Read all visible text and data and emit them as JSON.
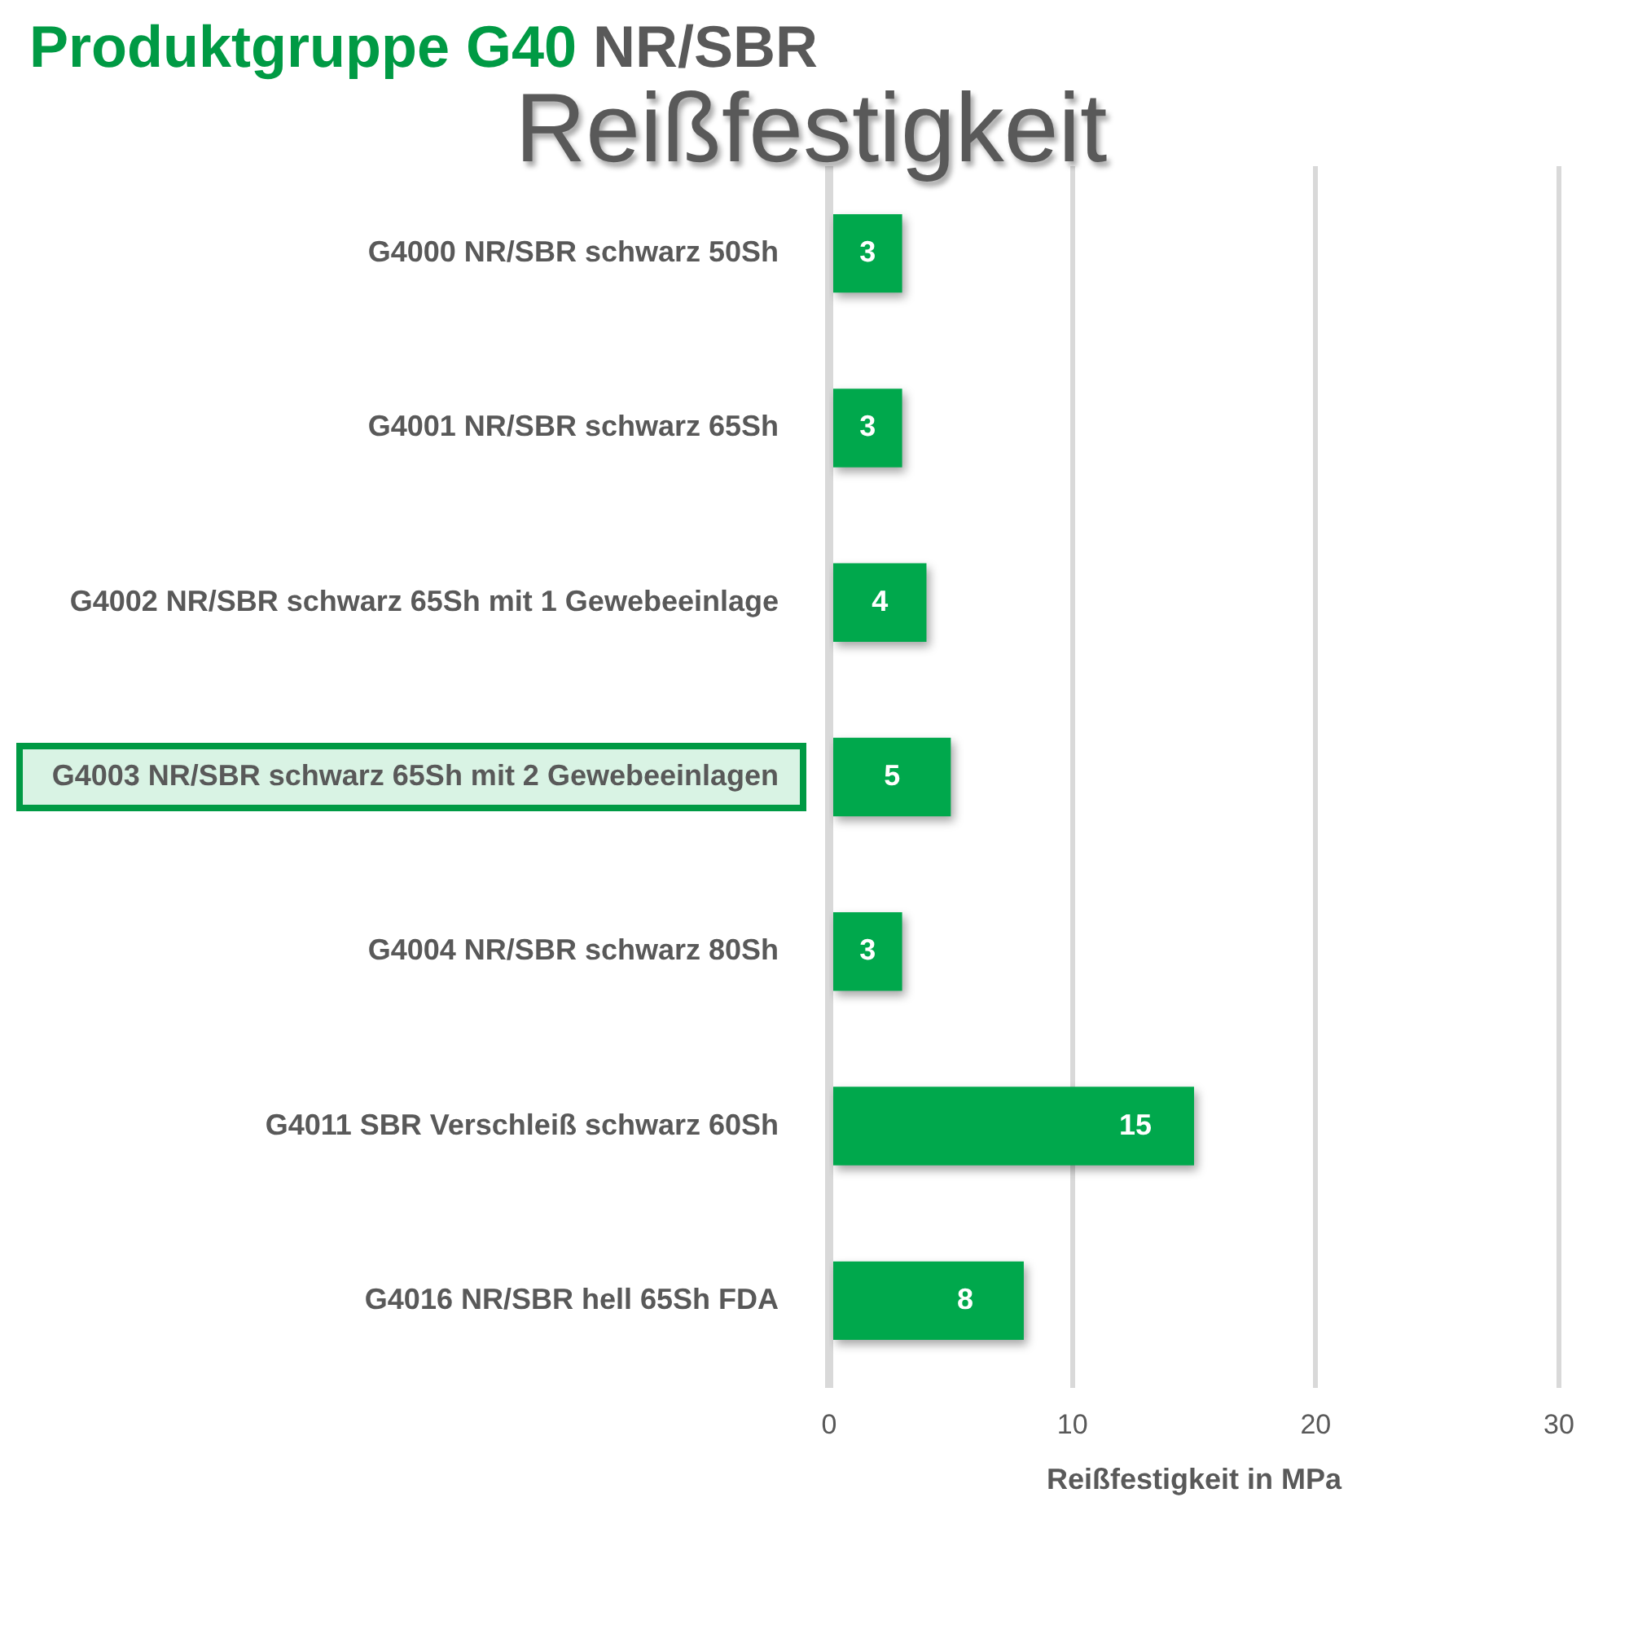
{
  "chart_data": {
    "type": "bar",
    "orientation": "horizontal",
    "title": "Produktgruppe G40 NR/SBR",
    "subtitle": "Reißfestigkeit",
    "xlabel": "Reißfestigkeit in MPa",
    "categories": [
      "G4000 NR/SBR schwarz 50Sh",
      "G4001 NR/SBR schwarz 65Sh",
      "G4002 NR/SBR schwarz 65Sh mit 1 Gewebeeinlage",
      "G4003 NR/SBR schwarz 65Sh mit 2 Gewebeeinlagen",
      "G4004 NR/SBR schwarz 80Sh",
      "G4011 SBR Verschleiß schwarz 60Sh",
      "G4016 NR/SBR hell 65Sh FDA"
    ],
    "values": [
      3,
      3,
      4,
      5,
      3,
      15,
      8
    ],
    "color": "#00a84c",
    "xlim": [
      0,
      30
    ],
    "xticks": [
      0,
      10,
      20,
      30
    ],
    "grid": "x",
    "data_labels": true
  }
}
